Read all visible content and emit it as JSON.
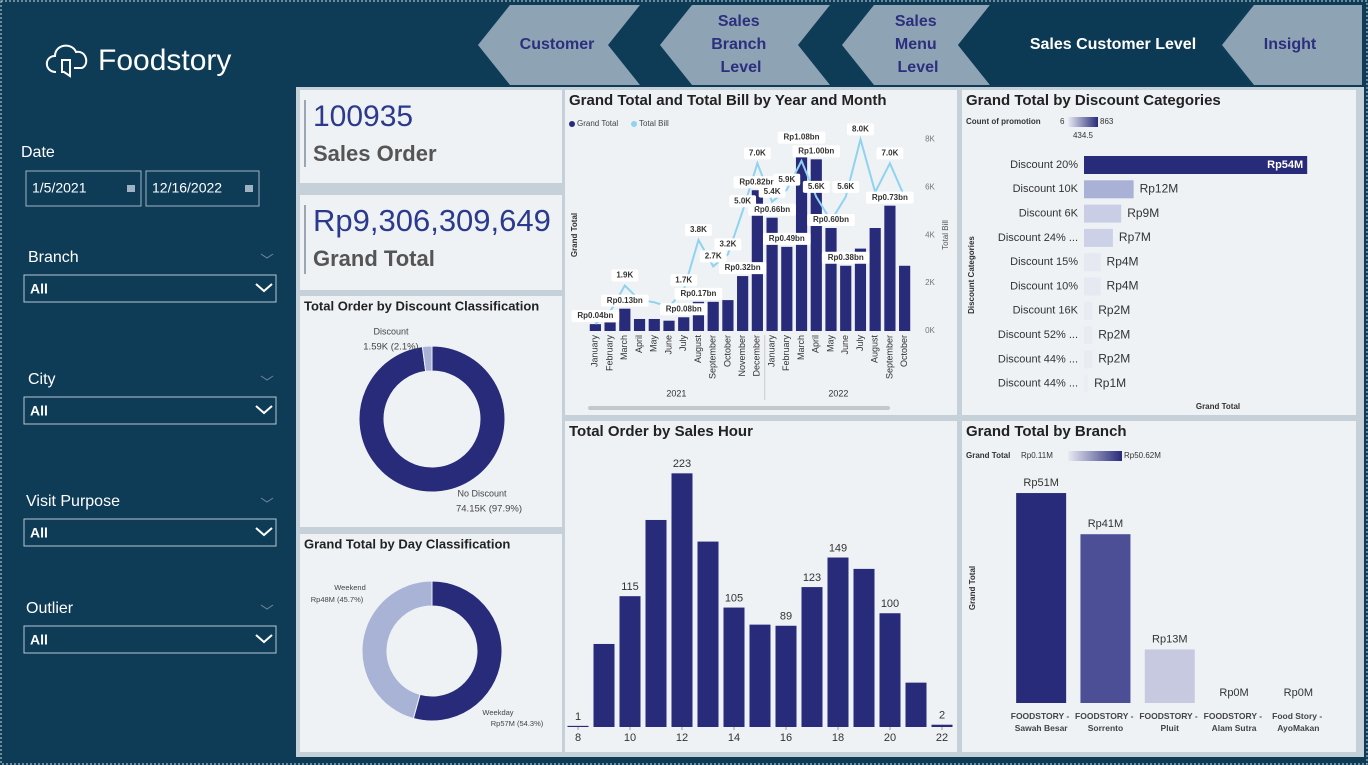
{
  "nav": {
    "logo": "Foodstory",
    "tabs": [
      "Customer",
      "Sales Branch Level",
      "Sales Menu Level",
      "Sales Customer Level",
      "Insight"
    ],
    "active_tab": 3
  },
  "filters": {
    "date": {
      "label": "Date",
      "start": "1/5/2021",
      "end": "12/16/2022"
    },
    "dropdowns": [
      {
        "label": "Branch",
        "value": "All"
      },
      {
        "label": "City",
        "value": "All"
      },
      {
        "label": "Visit Purpose",
        "value": "All"
      },
      {
        "label": "Outlier",
        "value": "All"
      }
    ]
  },
  "kpis": [
    {
      "value": "100935",
      "label": "Sales Order"
    },
    {
      "value": "Rp9,306,309,649",
      "label": "Grand Total"
    }
  ],
  "chart_data": [
    {
      "type": "combo",
      "title": "Grand Total and Total Bill by Year and Month",
      "groups": [
        {
          "name": "2021",
          "categories": [
            "January",
            "February",
            "March",
            "April",
            "May",
            "June",
            "July",
            "August",
            "September",
            "October",
            "November",
            "December"
          ]
        },
        {
          "name": "2022",
          "categories": [
            "January",
            "February",
            "March",
            "April",
            "May",
            "June",
            "July",
            "August",
            "September",
            "October"
          ]
        }
      ],
      "series": [
        {
          "name": "Grand Total",
          "kind": "bar",
          "color": "#282a7a",
          "values": [
            0.04,
            0.05,
            0.13,
            0.07,
            0.07,
            0.06,
            0.08,
            0.17,
            0.17,
            0.18,
            0.32,
            0.82,
            0.66,
            0.49,
            1.08,
            1.0,
            0.6,
            0.38,
            0.48,
            0.6,
            0.73,
            0.38
          ],
          "value_labels": [
            "Rp0.04bn",
            null,
            "Rp0.13bn",
            null,
            null,
            null,
            "Rp0.08bn",
            "Rp0.17bn",
            null,
            null,
            "Rp0.32bn",
            "Rp0.82bn",
            "Rp0.66bn",
            "Rp0.49bn",
            "Rp1.08bn",
            "Rp1.00bn",
            "Rp0.60bn",
            "Rp0.38bn",
            null,
            null,
            "Rp0.73bn",
            null
          ]
        },
        {
          "name": "Total Bill",
          "kind": "line",
          "axis": "y2",
          "color": "#8fd3ef",
          "values": [
            0.3,
            0.8,
            1.9,
            1.3,
            1.2,
            1.0,
            1.7,
            3.8,
            2.7,
            3.2,
            5.0,
            7.0,
            5.4,
            5.9,
            7.1,
            5.6,
            4.6,
            5.6,
            8.0,
            5.8,
            7.0,
            5.6
          ],
          "value_labels": [
            null,
            null,
            "1.9K",
            null,
            null,
            null,
            "1.7K",
            "3.8K",
            "2.7K",
            "3.2K",
            "5.0K",
            "7.0K",
            "5.4K",
            "5.9K",
            null,
            "5.6K",
            null,
            "5.6K",
            "8.0K",
            null,
            "7.0K",
            null
          ]
        }
      ],
      "ylabel": "Grand Total",
      "y2label": "Total Bill",
      "ylim": [
        0,
        1.2
      ],
      "y2lim": [
        0,
        8.6
      ],
      "y2ticks": [
        {
          "value": 0,
          "label": "0K"
        },
        {
          "value": 2,
          "label": "2K"
        },
        {
          "value": 4,
          "label": "4K"
        },
        {
          "value": 6,
          "label": "6K"
        },
        {
          "value": 8,
          "label": "8K"
        }
      ]
    },
    {
      "type": "hbar",
      "title": "Grand Total by Discount Categories",
      "legend": {
        "title": "Count of promotion",
        "min": 6,
        "mid": 434.5,
        "max": 863
      },
      "ylabel": "Discount Categories",
      "xlabel": "Grand Total",
      "categories": [
        "Discount 20%",
        "Discount 10K",
        "Discount 6K",
        "Discount 24% ...",
        "Discount 15%",
        "Discount 10%",
        "Discount 16K",
        "Discount 52% ...",
        "Discount 44% ...",
        "Discount 44% ..."
      ],
      "values": [
        54,
        12,
        9,
        7,
        4,
        4,
        2,
        2,
        2,
        1
      ],
      "value_labels": [
        "Rp54M",
        "Rp12M",
        "Rp9M",
        "Rp7M",
        "Rp4M",
        "Rp4M",
        "Rp2M",
        "Rp2M",
        "Rp2M",
        "Rp1M"
      ],
      "colors": [
        "#282a7a",
        "#a9b1d6",
        "#c9cee6",
        "#ccd1e7",
        "#e6e8f2",
        "#e6e8f2",
        "#e9ebf3",
        "#e9ebf3",
        "#e9ebf3",
        "#eceef5"
      ],
      "xlim": [
        0,
        60
      ]
    },
    {
      "type": "donut",
      "title": "Total Order by Discount Classification",
      "categories": [
        "Discount",
        "No Discount"
      ],
      "values": [
        1.59,
        74.15
      ],
      "value_labels": [
        "1.59K (2.1%)",
        "74.15K (97.9%)"
      ],
      "colors": [
        "#a8b3d6",
        "#282a7a"
      ]
    },
    {
      "type": "donut",
      "title": "Grand Total by Day Classification",
      "categories": [
        "Weekend",
        "Weekday"
      ],
      "values": [
        48,
        57
      ],
      "value_labels": [
        "Rp48M (45.7%)",
        "Rp57M (54.3%)"
      ],
      "colors": [
        "#a8b3d6",
        "#282a7a"
      ]
    },
    {
      "type": "bar",
      "title": "Total Order by Sales Hour",
      "x": [
        8,
        9,
        10,
        11,
        12,
        13,
        14,
        15,
        16,
        17,
        18,
        19,
        20,
        21,
        22
      ],
      "values": [
        1,
        73,
        115,
        182,
        223,
        163,
        105,
        90,
        89,
        123,
        149,
        139,
        100,
        39,
        2
      ],
      "value_labels": [
        "1",
        null,
        "115",
        null,
        "223",
        null,
        "105",
        null,
        "89",
        "123",
        "149",
        null,
        "100",
        null,
        "2"
      ],
      "color": "#282a7a",
      "xlim": [
        7.5,
        22.5
      ],
      "xticks": [
        8,
        10,
        12,
        14,
        16,
        18,
        20,
        22
      ],
      "ylim": [
        0,
        240
      ]
    },
    {
      "type": "column",
      "title": "Grand Total by Branch",
      "legend": {
        "title": "Grand Total",
        "min": "Rp0.11M",
        "max": "Rp50.62M"
      },
      "ylabel": "Grand Total",
      "categories": [
        "FOODSTORY - Sawah Besar",
        "FOODSTORY - Sorrento",
        "FOODSTORY - Pluit",
        "FOODSTORY - Alam Sutra",
        "Food Story - AyoMakan"
      ],
      "values": [
        51,
        41,
        13,
        0,
        0
      ],
      "value_labels": [
        "Rp51M",
        "Rp41M",
        "Rp13M",
        "Rp0M",
        "Rp0M"
      ],
      "colors": [
        "#282a7a",
        "#4c4f95",
        "#c6c9df",
        "#eeeff5",
        "#eeeff5"
      ],
      "ylim": [
        0,
        60
      ]
    }
  ]
}
